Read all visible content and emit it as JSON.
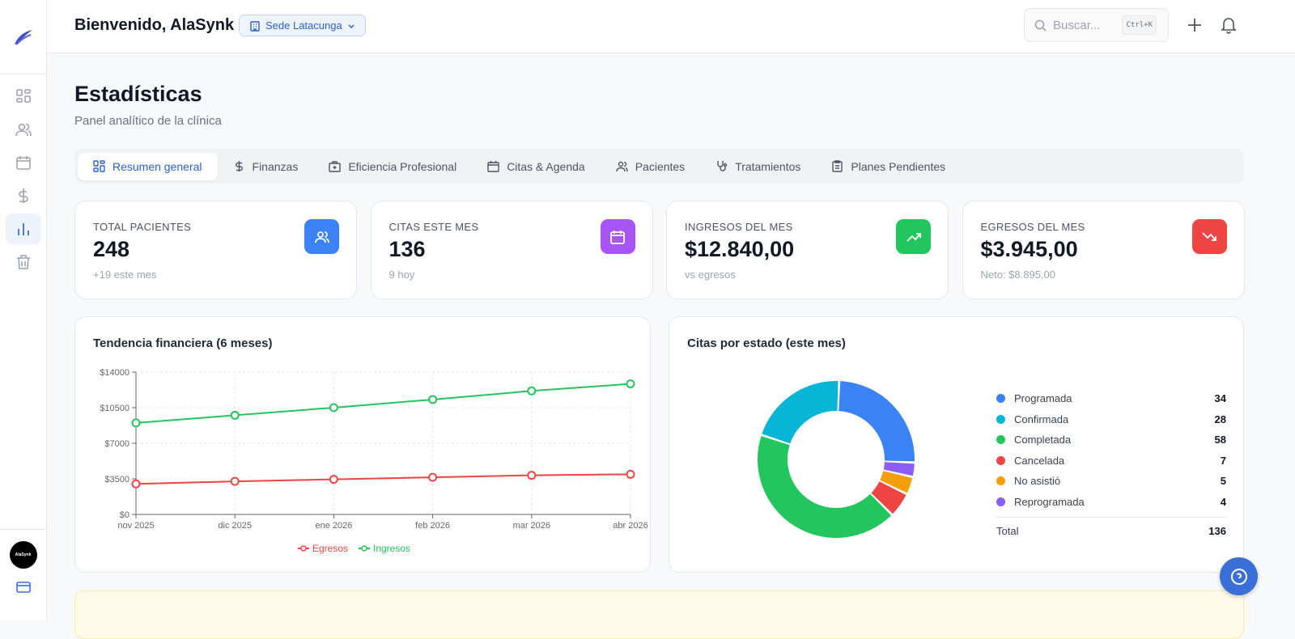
{
  "app": {
    "logo": "AlaSynk"
  },
  "sidebar": {
    "items": [
      {
        "icon": "dashboard-icon"
      },
      {
        "icon": "users-icon"
      },
      {
        "icon": "calendar-icon"
      },
      {
        "icon": "dollar-icon"
      },
      {
        "icon": "bar-chart-icon",
        "active": true
      },
      {
        "icon": "trash-icon"
      }
    ],
    "avatar_text": "AlaSynk",
    "bottom_icon": "card-icon"
  },
  "header": {
    "welcome": "Bienvenido, AlaSynk",
    "sede": "Sede Latacunga",
    "search_placeholder": "Buscar...",
    "shortcut": "Ctrl+K"
  },
  "page": {
    "title": "Estadísticas",
    "subtitle": "Panel analítico de la clínica"
  },
  "tabs": [
    {
      "label": "Resumen general",
      "active": true
    },
    {
      "label": "Finanzas"
    },
    {
      "label": "Eficiencia Profesional"
    },
    {
      "label": "Citas & Agenda"
    },
    {
      "label": "Pacientes"
    },
    {
      "label": "Tratamientos"
    },
    {
      "label": "Planes Pendientes"
    }
  ],
  "kpis": [
    {
      "label": "TOTAL PACIENTES",
      "value": "248",
      "hint": "+19 este mes",
      "color": "#3b82f6",
      "icon": "users-icon"
    },
    {
      "label": "CITAS ESTE MES",
      "value": "136",
      "hint": "9 hoy",
      "color": "#a855f7",
      "icon": "calendar-icon"
    },
    {
      "label": "INGRESOS DEL MES",
      "value": "$12.840,00",
      "hint": "vs egresos",
      "color": "#22c55e",
      "icon": "trending-up-icon"
    },
    {
      "label": "EGRESOS DEL MES",
      "value": "$3.945,00",
      "hint": "Neto: $8.895,00",
      "color": "#ef4444",
      "icon": "trending-down-icon"
    }
  ],
  "chart_data": [
    {
      "type": "line",
      "title": "Tendencia financiera (6 meses)",
      "categories": [
        "nov 2025",
        "dic 2025",
        "ene 2026",
        "feb 2026",
        "mar 2026",
        "abr 2026"
      ],
      "yticks": [
        "$0",
        "$3500",
        "$7000",
        "$10500",
        "$14000"
      ],
      "ylim": [
        0,
        14000
      ],
      "grid": true,
      "legend": "bottom",
      "series": [
        {
          "name": "Egresos",
          "color": "#ef4444",
          "values": [
            3000,
            3250,
            3450,
            3650,
            3850,
            3945
          ]
        },
        {
          "name": "Ingresos",
          "color": "#22c55e",
          "values": [
            9000,
            9750,
            10500,
            11300,
            12150,
            12840
          ]
        }
      ]
    },
    {
      "type": "pie",
      "title": "Citas por estado (este mes)",
      "legend": "right",
      "slices": [
        {
          "name": "Programada",
          "value": 34,
          "color": "#3b82f6"
        },
        {
          "name": "Confirmada",
          "value": 28,
          "color": "#06b6d4"
        },
        {
          "name": "Completada",
          "value": 58,
          "color": "#22c55e"
        },
        {
          "name": "Cancelada",
          "value": 7,
          "color": "#ef4444"
        },
        {
          "name": "No asistió",
          "value": 5,
          "color": "#f59e0b"
        },
        {
          "name": "Reprogramada",
          "value": 4,
          "color": "#8b5cf6"
        }
      ],
      "total_label": "Total",
      "total": 136
    }
  ]
}
